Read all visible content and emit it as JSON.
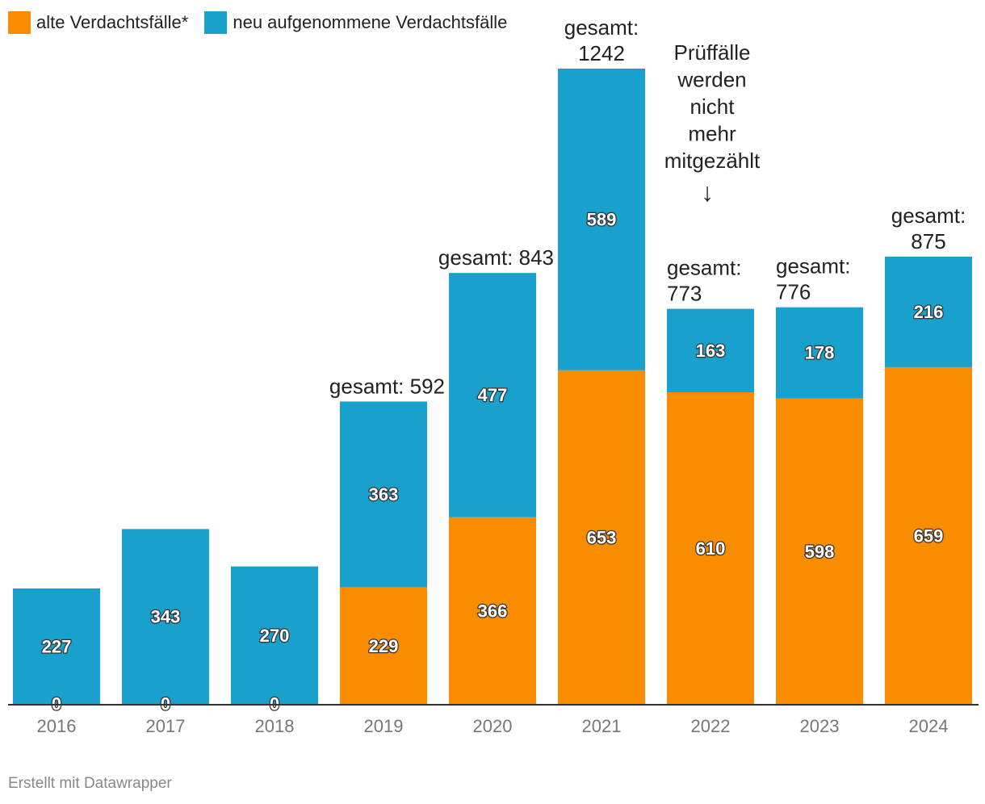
{
  "legend": [
    {
      "label": "alte Verdachtsfälle*",
      "color": "#fa8c00"
    },
    {
      "label": "neu aufgenommene Verdachtsfälle",
      "color": "#18a1cd"
    }
  ],
  "footer": "Erstellt mit Datawrapper",
  "chart_data": {
    "type": "bar",
    "stacked": true,
    "categories": [
      "2016",
      "2017",
      "2018",
      "2019",
      "2020",
      "2021",
      "2022",
      "2023",
      "2024"
    ],
    "series": [
      {
        "name": "alte Verdachtsfälle*",
        "color": "#fa8c00",
        "values": [
          0,
          0,
          0,
          229,
          366,
          653,
          610,
          598,
          659
        ]
      },
      {
        "name": "neu aufgenommene Verdachtsfälle",
        "color": "#18a1cd",
        "values": [
          227,
          343,
          270,
          363,
          477,
          589,
          163,
          178,
          216
        ]
      }
    ],
    "totals": [
      null,
      null,
      null,
      {
        "lines": [
          "gesamt: 592"
        ]
      },
      {
        "lines": [
          "gesamt: 843"
        ]
      },
      {
        "lines": [
          "gesamt:",
          "1242"
        ]
      },
      {
        "lines": [
          "gesamt:",
          "773"
        ]
      },
      {
        "lines": [
          "gesamt:",
          "776"
        ]
      },
      {
        "lines": [
          "gesamt:",
          "875"
        ]
      }
    ],
    "annotation": {
      "lines": [
        "Prüffälle",
        "werden",
        "nicht",
        "mehr",
        "mitgezählt"
      ],
      "arrow": "↓"
    },
    "ylim": [
      0,
      1242
    ],
    "grid": false,
    "legend_position": "top-left"
  }
}
